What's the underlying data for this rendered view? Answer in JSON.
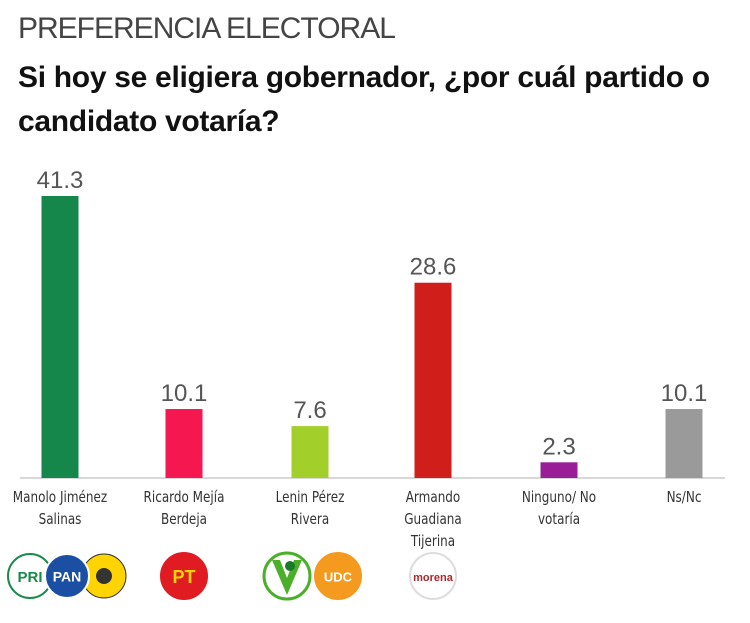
{
  "chart_data": {
    "type": "bar",
    "title": "PREFERENCIA ELECTORAL",
    "subtitle": "Si hoy se eligiera gobernador, ¿por cuál partido o candidato votaría?",
    "categories": [
      "Manolo Jiménez Salinas",
      "Ricardo Mejía Berdeja",
      "Lenin Pérez Rivera",
      "Armando Guadiana Tijerina",
      "Ninguno/ No votaría",
      "Ns/Nc"
    ],
    "values": [
      41.3,
      10.1,
      7.6,
      28.6,
      2.3,
      10.1
    ],
    "colors": [
      "#15874a",
      "#f5174f",
      "#a3cf2b",
      "#d01f1b",
      "#9a1d98",
      "#9a9a9a"
    ]
  },
  "party_logos": [
    [
      "PRI",
      "PAN"
    ],
    [
      "PT"
    ],
    [
      "UDC"
    ],
    [
      "morena"
    ]
  ]
}
